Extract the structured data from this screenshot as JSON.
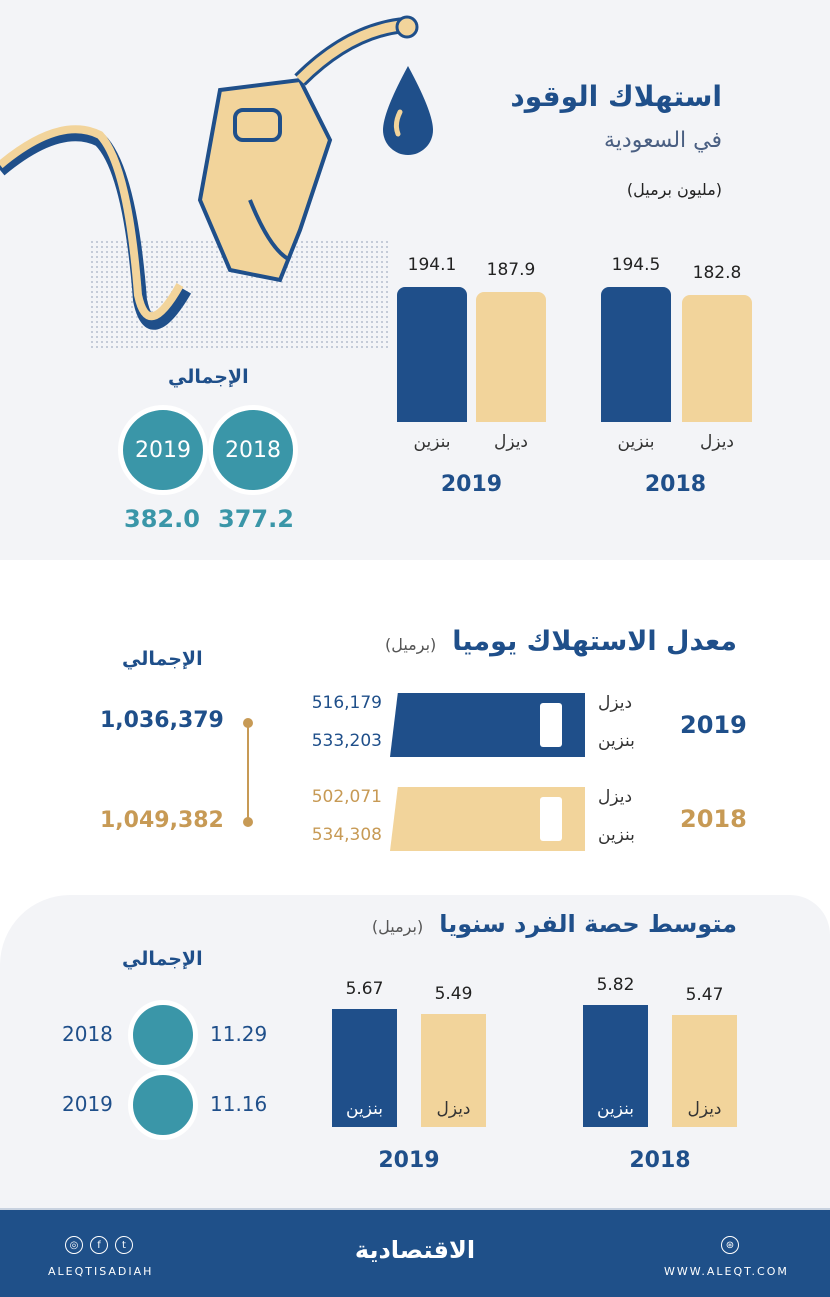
{
  "header": {
    "title": "استهلاك الوقود",
    "subtitle": "في السعودية",
    "unit": "(مليون برميل)"
  },
  "colors": {
    "navy": "#1f4f8a",
    "tan": "#f2d49b",
    "teal": "#3a96a8",
    "gold": "#c79a55"
  },
  "illustration": {
    "icons": [
      "fuel-nozzle-icon",
      "oil-drop-icon"
    ]
  },
  "totals1": {
    "label": "الإجمالي",
    "items": [
      {
        "year": "2018",
        "value": "377.2"
      },
      {
        "year": "2019",
        "value": "382.0"
      }
    ]
  },
  "chart_data": [
    {
      "type": "bar",
      "title": "استهلاك الوقود في السعودية",
      "ylabel": "(مليون برميل)",
      "categories": [
        "2019",
        "2018"
      ],
      "series": [
        {
          "name": "بنزين",
          "values": [
            194.1,
            194.5
          ]
        },
        {
          "name": "ديزل",
          "values": [
            187.9,
            182.8
          ]
        }
      ],
      "value_labels": {
        "2019": [
          "194.1",
          "187.9"
        ],
        "2018": [
          "194.5",
          "182.8"
        ]
      }
    },
    {
      "type": "bar",
      "title": "معدل الاستهلاك يوميا",
      "unit": "(برميل)",
      "orientation": "horizontal",
      "categories": [
        "2019",
        "2018"
      ],
      "series": [
        {
          "name": "ديزل",
          "values": [
            516179,
            502071
          ],
          "labels": [
            "516,179",
            "502,071"
          ]
        },
        {
          "name": "بنزين",
          "values": [
            533203,
            534308
          ],
          "labels": [
            "533,203",
            "534,308"
          ]
        }
      ],
      "totals_label": "الإجمالي",
      "totals": [
        "1,036,379",
        "1,049,382"
      ]
    },
    {
      "type": "bar",
      "title": "متوسط حصة الفرد سنويا",
      "unit": "(برميل)",
      "categories": [
        "2019",
        "2018"
      ],
      "series": [
        {
          "name": "بنزين",
          "values": [
            5.67,
            5.82
          ]
        },
        {
          "name": "ديزل",
          "values": [
            5.49,
            5.47
          ]
        }
      ],
      "value_labels": {
        "2019": [
          "5.67",
          "5.49"
        ],
        "2018": [
          "5.82",
          "5.47"
        ]
      },
      "totals_label": "الإجمالي",
      "totals": [
        {
          "year": "2018",
          "value": "11.29"
        },
        {
          "year": "2019",
          "value": "11.16"
        }
      ]
    }
  ],
  "footer": {
    "handle": "ALEQTISADIAH",
    "logo": "الاقتصادية",
    "website": "WWW.ALEQT.COM",
    "icons": [
      "instagram-icon",
      "facebook-icon",
      "twitter-icon",
      "globe-icon"
    ]
  }
}
